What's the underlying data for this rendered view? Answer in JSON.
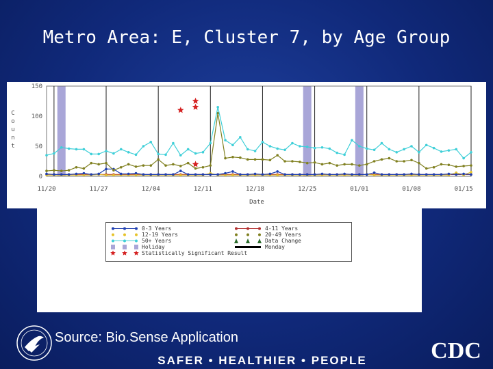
{
  "title": "Metro Area: E, Cluster 7, by Age Group",
  "source": "Source: Bio.Sense Application",
  "footer": "SAFER • HEALTHIER • PEOPLE",
  "logo_text": "CDC",
  "chart_data": {
    "type": "line",
    "xlabel": "Date",
    "ylabel": "Count",
    "ylim": [
      0,
      150
    ],
    "yticks": [
      0,
      50,
      100,
      150
    ],
    "xlim_days": [
      "11/20",
      "01/16"
    ],
    "xticks": [
      "11/20",
      "11/27",
      "12/04",
      "12/11",
      "12/18",
      "12/25",
      "01/01",
      "01/08",
      "01/15"
    ],
    "grid": "vertical lines at Mondays",
    "holidays": [
      "11/22",
      "12/25",
      "01/01"
    ],
    "series": [
      {
        "name": "0-3 Years",
        "color": "#1f3fb0",
        "values": [
          4,
          3,
          3,
          3,
          4,
          5,
          3,
          4,
          12,
          12,
          4,
          4,
          5,
          3,
          3,
          3,
          3,
          3,
          9,
          3,
          3,
          3,
          3,
          3,
          5,
          8,
          3,
          3,
          4,
          3,
          4,
          8,
          3,
          3,
          3,
          3,
          3,
          4,
          3,
          3,
          4,
          3,
          3,
          3,
          6,
          3,
          3,
          3,
          3,
          4,
          3,
          3,
          3,
          3,
          4,
          3,
          4,
          3
        ]
      },
      {
        "name": "4-11 Years",
        "color": "#b33030",
        "values": [
          3,
          3,
          3,
          3,
          3,
          3,
          3,
          3,
          3,
          3,
          3,
          3,
          3,
          3,
          3,
          3,
          3,
          3,
          3,
          3,
          3,
          3,
          3,
          3,
          3,
          3,
          3,
          3,
          3,
          3,
          3,
          3,
          3,
          3,
          3,
          3,
          3,
          3,
          3,
          3,
          3,
          3,
          3,
          3,
          3,
          3,
          3,
          3,
          3,
          3,
          3,
          3,
          3,
          3,
          3,
          3,
          3,
          3
        ]
      },
      {
        "name": "12-19 Years",
        "color": "#e6c229",
        "values": [
          2,
          2,
          2,
          2,
          2,
          2,
          2,
          3,
          2,
          2,
          2,
          2,
          2,
          2,
          2,
          2,
          2,
          2,
          2,
          2,
          2,
          2,
          5,
          2,
          2,
          2,
          2,
          2,
          2,
          2,
          2,
          2,
          2,
          2,
          2,
          2,
          2,
          2,
          2,
          2,
          2,
          2,
          2,
          3,
          2,
          2,
          2,
          2,
          2,
          2,
          2,
          2,
          2,
          2,
          2,
          6,
          2,
          7
        ]
      },
      {
        "name": "20-49 Years",
        "color": "#808020",
        "values": [
          9,
          10,
          9,
          10,
          15,
          13,
          22,
          20,
          22,
          10,
          15,
          20,
          16,
          18,
          18,
          28,
          18,
          20,
          17,
          22,
          13,
          15,
          18,
          105,
          30,
          32,
          31,
          28,
          28,
          28,
          27,
          35,
          25,
          25,
          24,
          22,
          23,
          20,
          22,
          18,
          20,
          20,
          18,
          20,
          25,
          28,
          30,
          25,
          25,
          27,
          22,
          13,
          15,
          20,
          19,
          16,
          17,
          18
        ]
      },
      {
        "name": "50+ Years",
        "color": "#3ecfd8",
        "values": [
          35,
          38,
          48,
          46,
          45,
          45,
          37,
          37,
          42,
          38,
          45,
          40,
          36,
          50,
          57,
          37,
          36,
          55,
          35,
          45,
          38,
          40,
          55,
          115,
          60,
          52,
          65,
          45,
          42,
          57,
          50,
          46,
          44,
          55,
          50,
          49,
          47,
          48,
          46,
          39,
          36,
          60,
          50,
          46,
          44,
          55,
          45,
          40,
          45,
          50,
          40,
          52,
          47,
          41,
          43,
          45,
          30,
          40
        ]
      }
    ],
    "stars": [
      {
        "date": "12/08",
        "value": 110
      },
      {
        "date": "12/10",
        "value": 125
      },
      {
        "date": "12/10",
        "value": 115
      },
      {
        "date": "12/10",
        "value": 20
      }
    ],
    "legend": {
      "position": "below chart",
      "items": [
        "0-3 Years",
        "4-11 Years",
        "12-19 Years",
        "20-49 Years",
        "50+ Years",
        "Data Change",
        "Holiday",
        "Monday",
        "Statistically Significant Result"
      ]
    }
  }
}
